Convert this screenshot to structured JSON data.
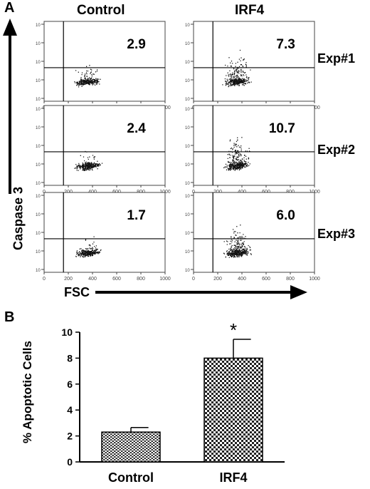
{
  "panel_a": {
    "letter": "A",
    "columns": [
      "Control",
      "IRF4"
    ],
    "experiments": [
      "Exp#1",
      "Exp#2",
      "Exp#3"
    ],
    "percentages": [
      [
        "2.9",
        "7.3"
      ],
      [
        "2.4",
        "10.7"
      ],
      [
        "1.7",
        "6.0"
      ]
    ],
    "y_axis_label": "Caspase 3",
    "x_axis_label": "FSC",
    "x_ticks": [
      "0",
      "200",
      "400",
      "600",
      "800",
      "1000"
    ]
  },
  "panel_b": {
    "letter": "B"
  },
  "chart_data": {
    "type": "bar",
    "categories": [
      "Control",
      "IRF4"
    ],
    "values": [
      2.3,
      8.0
    ],
    "error": [
      0.35,
      1.45
    ],
    "significance": [
      "",
      "*"
    ],
    "ylabel": "% Apoptotic Cells",
    "ylim": [
      0,
      10
    ],
    "yticks": [
      0,
      2,
      4,
      6,
      8,
      10
    ],
    "grid": false
  }
}
